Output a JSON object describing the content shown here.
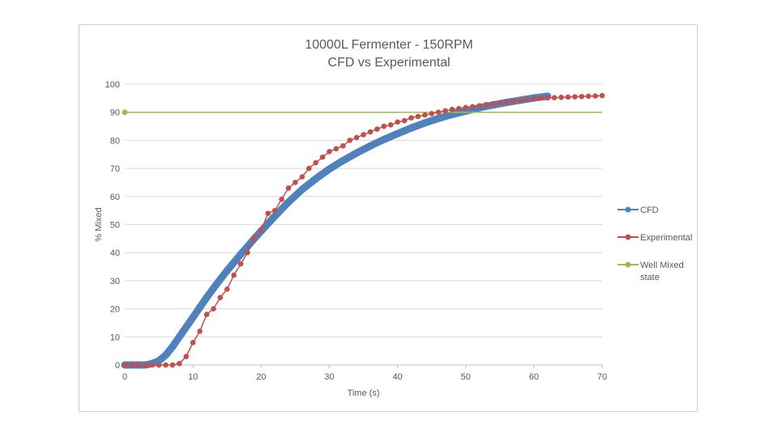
{
  "chart_data": {
    "type": "line",
    "title": "10000L Fermenter - 150RPM",
    "subtitle": "CFD vs Experimental",
    "xlabel": "Time (s)",
    "ylabel": "% Mixed",
    "xlim": [
      0,
      70
    ],
    "ylim": [
      0,
      100
    ],
    "x_ticks": [
      "0",
      "10",
      "20",
      "30",
      "40",
      "50",
      "60",
      "70"
    ],
    "y_ticks": [
      "0",
      "10",
      "20",
      "30",
      "40",
      "50",
      "60",
      "70",
      "80",
      "90",
      "100"
    ],
    "grid": "horizontal",
    "legend_position": "right",
    "series": [
      {
        "name": "CFD",
        "color": "#4f81bd",
        "style": "thick-dense-markers",
        "x": [
          0,
          2,
          3,
          4,
          5,
          6,
          7,
          8,
          9,
          10,
          11,
          12,
          13,
          14,
          15,
          16,
          17,
          18,
          19,
          20,
          22,
          24,
          26,
          28,
          30,
          32,
          34,
          36,
          38,
          40,
          42,
          44,
          46,
          48,
          50,
          52,
          54,
          56,
          58,
          60,
          62
        ],
        "y": [
          0,
          0,
          0,
          0.5,
          1.5,
          3.5,
          6.5,
          10,
          13.5,
          17,
          20.5,
          24,
          27.3,
          30.5,
          33.6,
          36.5,
          39.4,
          42.2,
          45,
          47.7,
          53,
          58,
          62.5,
          66.3,
          69.8,
          72.8,
          75.5,
          78,
          80.3,
          82.4,
          84.4,
          86.2,
          87.8,
          89.2,
          90.4,
          91.6,
          92.6,
          93.5,
          94.3,
          95.1,
          95.7
        ]
      },
      {
        "name": "Experimental",
        "color": "#c0504d",
        "style": "line-with-markers",
        "x": [
          0,
          1,
          2,
          3,
          4,
          5,
          6,
          7,
          8,
          9,
          10,
          11,
          12,
          13,
          14,
          15,
          16,
          17,
          18,
          19,
          20,
          21,
          22,
          23,
          24,
          25,
          26,
          27,
          28,
          29,
          30,
          31,
          32,
          33,
          34,
          35,
          36,
          37,
          38,
          39,
          40,
          41,
          42,
          43,
          44,
          45,
          46,
          47,
          48,
          49,
          50,
          51,
          52,
          53,
          54,
          55,
          56,
          57,
          58,
          59,
          60,
          61,
          62,
          63,
          64,
          65,
          66,
          67,
          68,
          69,
          70
        ],
        "y": [
          0,
          0,
          0,
          0,
          0,
          0,
          0,
          0,
          0.5,
          3,
          8,
          12,
          18,
          20,
          24,
          27,
          32,
          36,
          40,
          45,
          48,
          54,
          55,
          59,
          63,
          65,
          67,
          70,
          72,
          74,
          76,
          77,
          78,
          80,
          81,
          82,
          83,
          84,
          85,
          85.5,
          86.5,
          87,
          88,
          88.5,
          89,
          89.5,
          90,
          90.5,
          91,
          91.3,
          91.7,
          92,
          92.3,
          92.7,
          93,
          93.3,
          93.6,
          93.9,
          94.2,
          94.5,
          94.8,
          95,
          95.1,
          95.2,
          95.3,
          95.4,
          95.5,
          95.6,
          95.7,
          95.8,
          95.9
        ]
      },
      {
        "name": "Well Mixed state",
        "color": "#9bbb59",
        "style": "line-single-marker",
        "x": [
          0,
          70
        ],
        "y": [
          90,
          90
        ]
      }
    ]
  }
}
